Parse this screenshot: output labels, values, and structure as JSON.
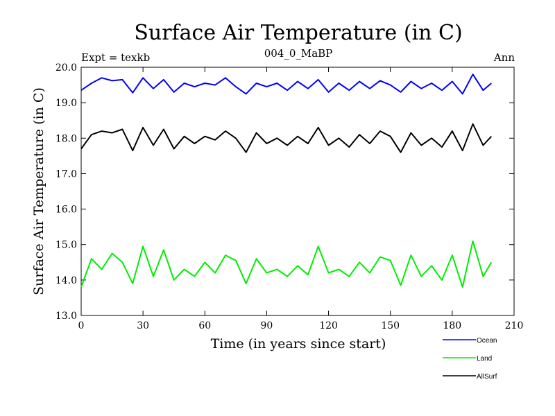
{
  "chart_data": {
    "type": "line",
    "title": "Surface Air Temperature (in C)",
    "subtitle": "004_0_MaBP",
    "left_label": "Expt = texkb",
    "right_label": "Ann",
    "xlabel": "Time (in years since start)",
    "ylabel": "Surface Air Temperature (in C)",
    "xlim": [
      0,
      210
    ],
    "ylim": [
      13,
      20
    ],
    "xticks": [
      0,
      30,
      60,
      90,
      120,
      150,
      180,
      210
    ],
    "yticks": [
      "13.0",
      "14.0",
      "15.0",
      "16.0",
      "17.0",
      "18.0",
      "19.0",
      "20.0"
    ],
    "x": [
      0,
      5,
      10,
      15,
      20,
      25,
      30,
      35,
      40,
      45,
      50,
      55,
      60,
      65,
      70,
      75,
      80,
      85,
      90,
      95,
      100,
      105,
      110,
      115,
      120,
      125,
      130,
      135,
      140,
      145,
      150,
      155,
      160,
      165,
      170,
      175,
      180,
      185,
      190,
      195,
      199
    ],
    "series": [
      {
        "name": "Ocean",
        "color": "#0000ff",
        "values": [
          19.35,
          19.55,
          19.7,
          19.62,
          19.65,
          19.28,
          19.7,
          19.4,
          19.65,
          19.3,
          19.55,
          19.45,
          19.55,
          19.5,
          19.7,
          19.45,
          19.25,
          19.55,
          19.45,
          19.55,
          19.35,
          19.6,
          19.4,
          19.65,
          19.3,
          19.55,
          19.35,
          19.6,
          19.4,
          19.62,
          19.5,
          19.3,
          19.6,
          19.4,
          19.55,
          19.35,
          19.6,
          19.25,
          19.8,
          19.35,
          19.55
        ]
      },
      {
        "name": "Land",
        "color": "#00ee00",
        "values": [
          13.8,
          14.6,
          14.3,
          14.75,
          14.5,
          13.9,
          14.95,
          14.1,
          14.85,
          14.0,
          14.3,
          14.1,
          14.5,
          14.2,
          14.7,
          14.55,
          13.9,
          14.6,
          14.2,
          14.3,
          14.1,
          14.4,
          14.15,
          14.95,
          14.2,
          14.3,
          14.1,
          14.5,
          14.2,
          14.65,
          14.55,
          13.85,
          14.7,
          14.1,
          14.4,
          14.0,
          14.7,
          13.8,
          15.1,
          14.1,
          14.5
        ]
      },
      {
        "name": "AllSurf",
        "color": "#000000",
        "values": [
          17.7,
          18.1,
          18.2,
          18.15,
          18.25,
          17.65,
          18.3,
          17.8,
          18.25,
          17.7,
          18.05,
          17.85,
          18.05,
          17.95,
          18.2,
          18.0,
          17.6,
          18.15,
          17.85,
          18.0,
          17.8,
          18.05,
          17.85,
          18.3,
          17.8,
          18.0,
          17.75,
          18.1,
          17.85,
          18.2,
          18.05,
          17.6,
          18.15,
          17.8,
          18.0,
          17.75,
          18.2,
          17.65,
          18.4,
          17.8,
          18.05
        ]
      }
    ],
    "legend_position": "bottom-right"
  }
}
